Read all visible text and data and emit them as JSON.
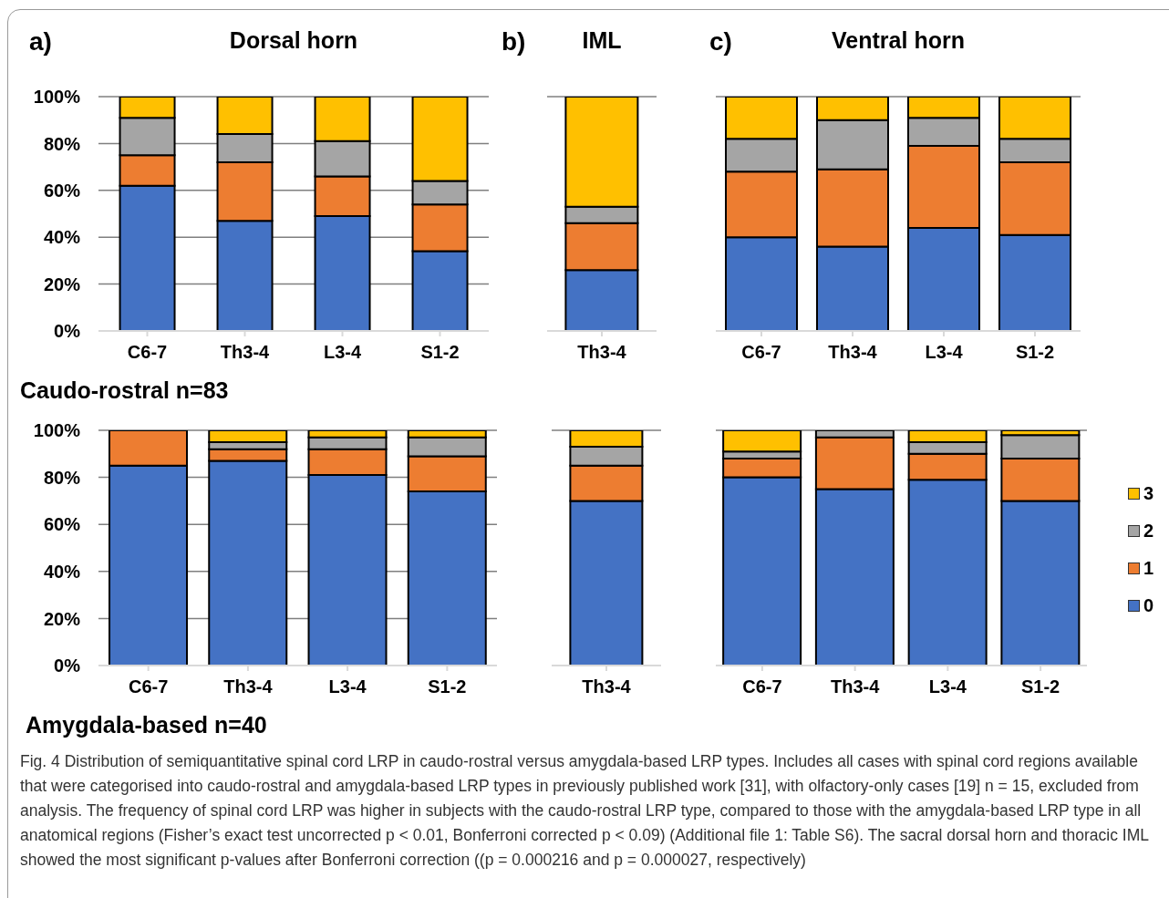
{
  "chart_data": [
    {
      "type": "bar",
      "stacked": true,
      "title": "Dorsal horn",
      "annotations": [
        "a)",
        "Caudo-rostral n=83"
      ],
      "categories": [
        "C6-7",
        "Th3-4",
        "L3-4",
        "S1-2"
      ],
      "series": [
        {
          "color": "#4472c4",
          "values": [
            62,
            47,
            49,
            34
          ]
        },
        {
          "color": "#ed7d31",
          "values": [
            13,
            25,
            17,
            20
          ]
        },
        {
          "color": "#a5a5a5",
          "values": [
            16,
            12,
            15,
            10
          ]
        },
        {
          "color": "#ffc000",
          "values": [
            9,
            16,
            19,
            36
          ]
        }
      ],
      "ylim": [
        0,
        100
      ],
      "yticks": [
        {
          "value": 0,
          "label": "0%"
        },
        {
          "value": 20,
          "label": "20%"
        },
        {
          "value": 40,
          "label": "40%"
        },
        {
          "value": 60,
          "label": "60%"
        },
        {
          "value": 80,
          "label": "80%"
        },
        {
          "value": 100,
          "label": "100%"
        }
      ],
      "grid": "y"
    },
    {
      "type": "bar",
      "stacked": true,
      "title": "IML",
      "annotations": [
        "b)"
      ],
      "categories": [
        "Th3-4"
      ],
      "series": [
        {
          "color": "#4472c4",
          "values": [
            26
          ]
        },
        {
          "color": "#ed7d31",
          "values": [
            20
          ]
        },
        {
          "color": "#a5a5a5",
          "values": [
            7
          ]
        },
        {
          "color": "#ffc000",
          "values": [
            47
          ]
        }
      ],
      "ylim": [
        0,
        100
      ],
      "yticks": [
        {
          "value": 0,
          "label": null
        },
        {
          "value": 20,
          "label": null
        },
        {
          "value": 40,
          "label": null
        },
        {
          "value": 60,
          "label": null
        },
        {
          "value": 80,
          "label": null
        },
        {
          "value": 100,
          "label": null
        }
      ],
      "grid": "y",
      "tick_labels": "x"
    },
    {
      "type": "bar",
      "stacked": true,
      "title": "Ventral horn",
      "annotations": [
        "c)"
      ],
      "categories": [
        "C6-7",
        "Th3-4",
        "L3-4",
        "S1-2"
      ],
      "series": [
        {
          "color": "#4472c4",
          "values": [
            40,
            36,
            44,
            41
          ]
        },
        {
          "color": "#ed7d31",
          "values": [
            28,
            33,
            35,
            31
          ]
        },
        {
          "color": "#a5a5a5",
          "values": [
            14,
            21,
            12,
            10
          ]
        },
        {
          "color": "#ffc000",
          "values": [
            18,
            10,
            9,
            18
          ]
        }
      ],
      "ylim": [
        0,
        100
      ],
      "yticks": [
        {
          "value": 0,
          "label": null
        },
        {
          "value": 20,
          "label": null
        },
        {
          "value": 40,
          "label": null
        },
        {
          "value": 60,
          "label": null
        },
        {
          "value": 80,
          "label": null
        },
        {
          "value": 100,
          "label": null
        }
      ],
      "grid": "y",
      "tick_labels": "x"
    },
    {
      "type": "bar",
      "stacked": true,
      "annotations": [
        "Amygdala-based n=40"
      ],
      "categories": [
        "C6-7",
        "Th3-4",
        "L3-4",
        "S1-2"
      ],
      "series": [
        {
          "color": "#4472c4",
          "values": [
            85,
            87,
            81,
            74
          ]
        },
        {
          "color": "#ed7d31",
          "values": [
            15,
            5,
            11,
            15
          ]
        },
        {
          "color": "#a5a5a5",
          "values": [
            0,
            3,
            5,
            8
          ]
        },
        {
          "color": "#ffc000",
          "values": [
            0,
            5,
            3,
            3
          ]
        }
      ],
      "ylim": [
        0,
        100
      ],
      "yticks": [
        {
          "value": 0,
          "label": "0%"
        },
        {
          "value": 20,
          "label": "20%"
        },
        {
          "value": 40,
          "label": "40%"
        },
        {
          "value": 60,
          "label": "60%"
        },
        {
          "value": 80,
          "label": "80%"
        },
        {
          "value": 100,
          "label": "100%"
        }
      ],
      "grid": "y"
    },
    {
      "type": "bar",
      "stacked": true,
      "categories": [
        "Th3-4"
      ],
      "series": [
        {
          "color": "#4472c4",
          "values": [
            70
          ]
        },
        {
          "color": "#ed7d31",
          "values": [
            15
          ]
        },
        {
          "color": "#a5a5a5",
          "values": [
            8
          ]
        },
        {
          "color": "#ffc000",
          "values": [
            7
          ]
        }
      ],
      "ylim": [
        0,
        100
      ],
      "yticks": [
        {
          "value": 0,
          "label": null
        },
        {
          "value": 20,
          "label": null
        },
        {
          "value": 40,
          "label": null
        },
        {
          "value": 60,
          "label": null
        },
        {
          "value": 80,
          "label": null
        },
        {
          "value": 100,
          "label": null
        }
      ],
      "grid": "y",
      "tick_labels": "x"
    },
    {
      "type": "bar",
      "stacked": true,
      "categories": [
        "C6-7",
        "Th3-4",
        "L3-4",
        "S1-2"
      ],
      "annotations": [
        "Fig. 4 Distribution of semiquantitative spinal cord LRP in caudo-rostral versus amygdala-based LRP types. Includes all cases with spinal cord regions available that were categorised into caudo-rostral and amygdala-based LRP types in previously published work [31], with olfactory-only cases [19] n = 15, excluded from analysis. The frequency of spinal cord LRP was higher in subjects with the caudo-rostral LRP type, compared to those with the amygdala-based LRP type in all anatomical regions (Fisher’s exact test uncorrected p < 0.01, Bonferroni corrected p < 0.09) (Additional file 1: Table S6). The sacral dorsal horn and thoracic IML showed the most significant p-values after Bonferroni correction ((p = 0.000216 and p = 0.000027, respectively)"
      ],
      "series": [
        {
          "name": "0",
          "color": "#4472c4",
          "values": [
            80,
            75,
            79,
            70
          ]
        },
        {
          "name": "1",
          "color": "#ed7d31",
          "values": [
            8,
            22,
            11,
            18
          ]
        },
        {
          "name": "2",
          "color": "#a5a5a5",
          "values": [
            3,
            3,
            5,
            10
          ]
        },
        {
          "name": "3",
          "color": "#ffc000",
          "values": [
            9,
            0,
            5,
            2
          ]
        }
      ],
      "ylim": [
        0,
        100
      ],
      "yticks": [
        {
          "value": 0,
          "label": null
        },
        {
          "value": 20,
          "label": null
        },
        {
          "value": 40,
          "label": null
        },
        {
          "value": 60,
          "label": null
        },
        {
          "value": 80,
          "label": null
        },
        {
          "value": 100,
          "label": null
        }
      ],
      "grid": "y",
      "tick_labels": "x",
      "legend": "right"
    }
  ]
}
